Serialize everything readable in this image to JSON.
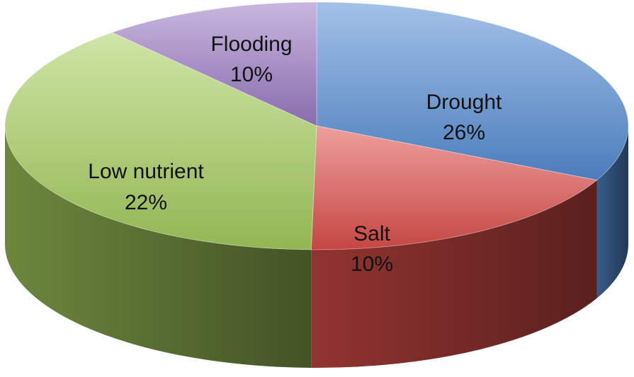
{
  "chart_data": {
    "type": "pie",
    "style": "3d",
    "title": "",
    "legend": "none",
    "slices": [
      {
        "key": "drought",
        "label": "Drought",
        "percent_label": "26%",
        "value": 26,
        "color": "#558ED5",
        "start_deg": 0,
        "end_deg": 116
      },
      {
        "key": "salt",
        "label": "Salt",
        "percent_label": "10%",
        "value": 10,
        "color": "#E0504C",
        "start_deg": 116,
        "end_deg": 181
      },
      {
        "key": "low-nutrient",
        "label": "Low nutrient",
        "percent_label": "22%",
        "value": 22,
        "color": "#A7CF5E",
        "start_deg": 181,
        "end_deg": 319
      },
      {
        "key": "flooding",
        "label": "Flooding",
        "percent_label": "10%",
        "value": 10,
        "color": "#9B7BC4",
        "start_deg": 319,
        "end_deg": 360
      }
    ]
  }
}
